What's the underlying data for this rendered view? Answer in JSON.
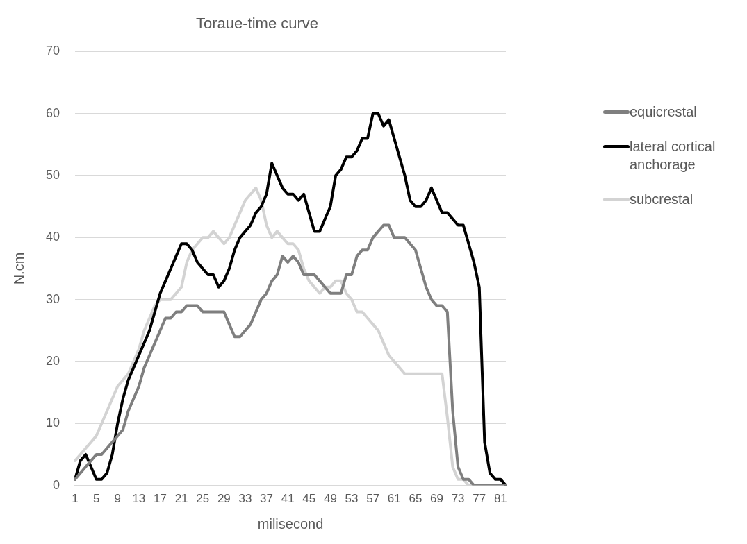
{
  "chart_data": {
    "type": "line",
    "title": "Toraue-time curve",
    "xlabel": "milisecond",
    "ylabel": "N.cm",
    "categories": [
      "1",
      null,
      null,
      null,
      "5",
      null,
      null,
      null,
      "9",
      null,
      null,
      null,
      "13",
      null,
      null,
      null,
      "17",
      null,
      null,
      null,
      "21",
      null,
      null,
      null,
      "25",
      null,
      null,
      null,
      "29",
      null,
      null,
      null,
      "33",
      null,
      null,
      null,
      "37",
      null,
      null,
      null,
      "41",
      null,
      null,
      null,
      "45",
      null,
      null,
      null,
      "49",
      null,
      null,
      null,
      "53",
      null,
      null,
      null,
      "57",
      null,
      null,
      null,
      "61",
      null,
      null,
      null,
      "65",
      null,
      null,
      null,
      "69",
      null,
      null,
      null,
      "73",
      null,
      null,
      null,
      "77",
      null,
      null,
      null,
      "81",
      null
    ],
    "series": [
      {
        "name": "equicrestal",
        "color": "#7f7f7f",
        "values": [
          1,
          2,
          3,
          4,
          5,
          5,
          6,
          7,
          8,
          9,
          12,
          14,
          16,
          19,
          21,
          23,
          25,
          27,
          27,
          28,
          28,
          29,
          29,
          29,
          28,
          28,
          28,
          28,
          28,
          26,
          24,
          24,
          25,
          26,
          28,
          30,
          31,
          33,
          34,
          37,
          36,
          37,
          36,
          34,
          34,
          34,
          33,
          32,
          31,
          31,
          31,
          34,
          34,
          37,
          38,
          38,
          40,
          41,
          42,
          42,
          40,
          40,
          40,
          39,
          38,
          35,
          32,
          30,
          29,
          29,
          28,
          12,
          3,
          1,
          1,
          0,
          0,
          0,
          0,
          0,
          0,
          0
        ]
      },
      {
        "name": "lateral cortical anchorage",
        "color": "#000000",
        "values": [
          1,
          4,
          5,
          3,
          1,
          1,
          2,
          5,
          10,
          14,
          17,
          19,
          21,
          23,
          25,
          28,
          31,
          33,
          35,
          37,
          39,
          39,
          38,
          36,
          35,
          34,
          34,
          32,
          33,
          35,
          38,
          40,
          41,
          42,
          44,
          45,
          47,
          52,
          50,
          48,
          47,
          47,
          46,
          47,
          44,
          41,
          41,
          43,
          45,
          50,
          51,
          53,
          53,
          54,
          56,
          56,
          60,
          60,
          58,
          59,
          56,
          53,
          50,
          46,
          45,
          45,
          46,
          48,
          46,
          44,
          44,
          43,
          42,
          42,
          39,
          36,
          32,
          7,
          2,
          1,
          1,
          0
        ]
      },
      {
        "name": "subcrestal",
        "color": "#d3d3d3",
        "values": [
          4,
          5,
          6,
          7,
          8,
          10,
          12,
          14,
          16,
          17,
          18,
          20,
          22,
          25,
          27,
          29,
          30,
          30,
          30,
          31,
          32,
          36,
          38,
          39,
          40,
          40,
          41,
          40,
          39,
          40,
          42,
          44,
          46,
          47,
          48,
          46,
          42,
          40,
          41,
          40,
          39,
          39,
          38,
          35,
          33,
          32,
          31,
          32,
          32,
          33,
          33,
          31,
          30,
          28,
          28,
          27,
          26,
          25,
          23,
          21,
          20,
          19,
          18,
          18,
          18,
          18,
          18,
          18,
          18,
          18,
          11,
          3,
          1,
          1,
          0,
          0,
          0,
          0,
          0,
          0,
          0,
          0
        ]
      }
    ],
    "ylim": [
      0,
      70
    ],
    "yticks": [
      0,
      10,
      20,
      30,
      40,
      50,
      60,
      70
    ],
    "grid": "y",
    "legend": "right",
    "marker": "none",
    "line_style": "solid"
  }
}
